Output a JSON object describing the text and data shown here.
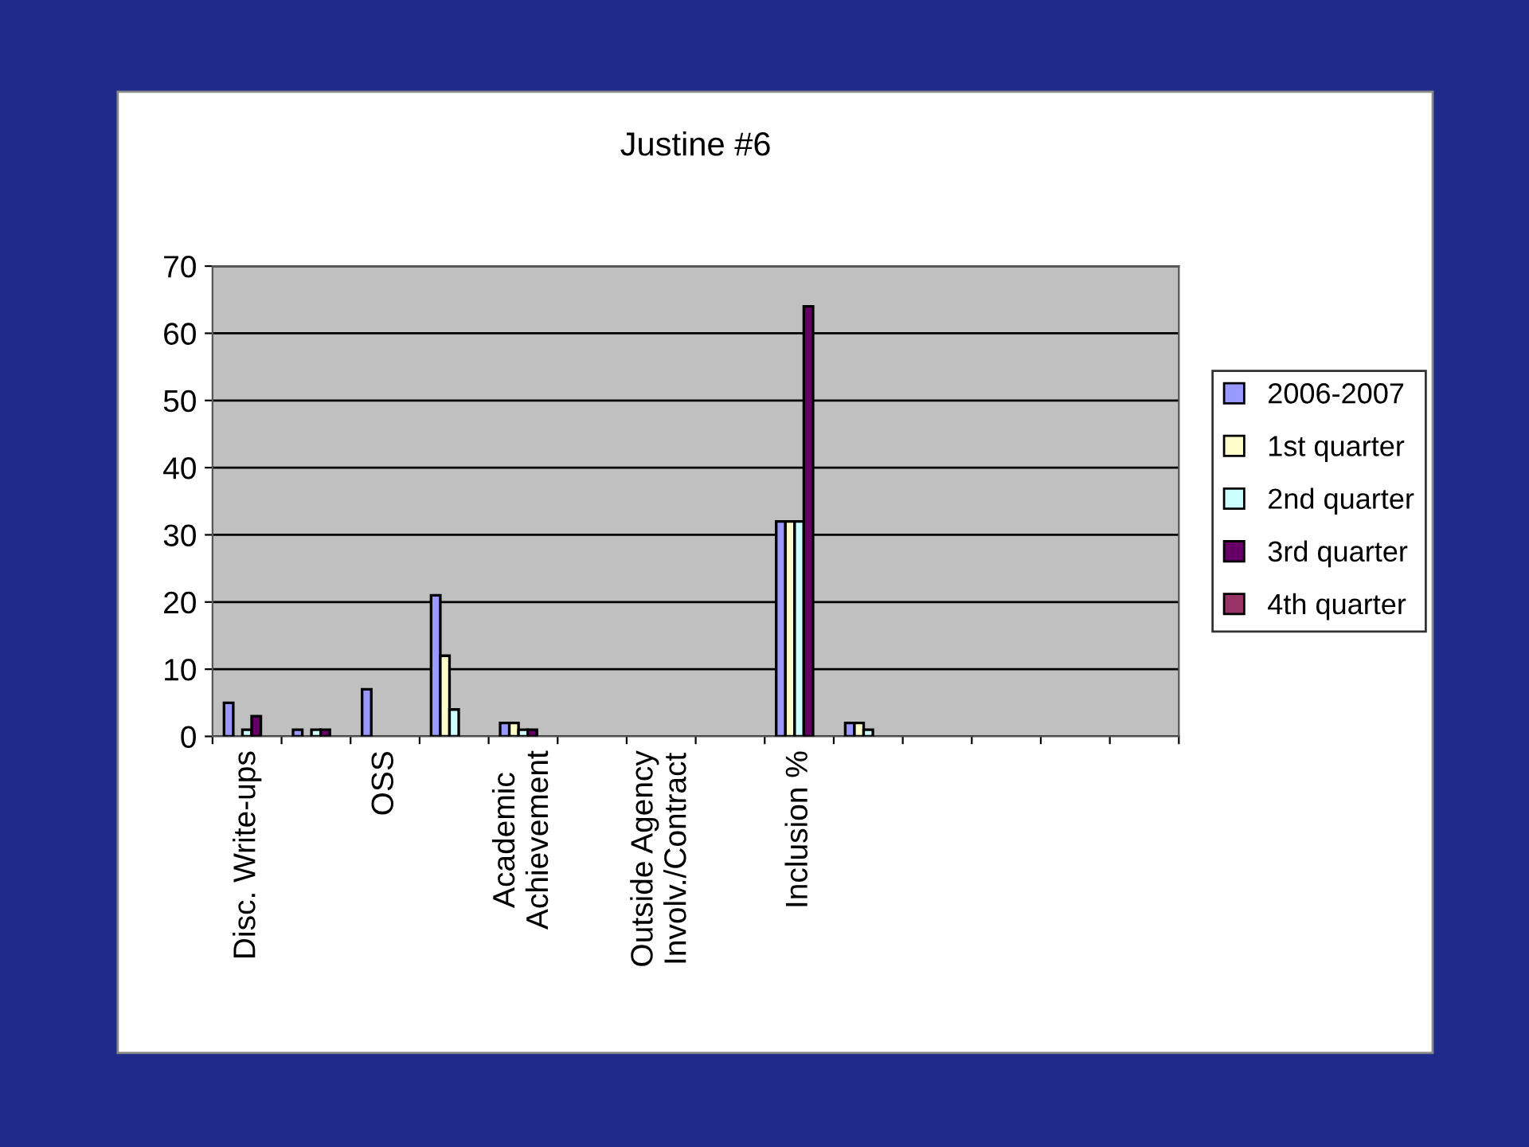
{
  "chart_data": {
    "type": "bar",
    "title": "Justine #6",
    "categories": [
      "Disc. Write-ups",
      null,
      "OSS",
      null,
      "Academic\nAchievement",
      null,
      "Outside Agency\nInvolv./Contract",
      null,
      "Inclusion %",
      null,
      null,
      null,
      null,
      null
    ],
    "series": [
      {
        "name": "2006-2007",
        "color": "#9999ff",
        "values": [
          5,
          1,
          7,
          21,
          2,
          null,
          null,
          null,
          32,
          2,
          null,
          null,
          null,
          null
        ]
      },
      {
        "name": "1st quarter",
        "color": "#ffffcc",
        "values": [
          null,
          null,
          null,
          12,
          2,
          null,
          null,
          null,
          32,
          2,
          null,
          null,
          null,
          null
        ]
      },
      {
        "name": "2nd quarter",
        "color": "#ccffff",
        "values": [
          1,
          1,
          null,
          4,
          1,
          null,
          null,
          null,
          32,
          1,
          null,
          null,
          null,
          null
        ]
      },
      {
        "name": "3rd quarter",
        "color": "#660066",
        "values": [
          3,
          1,
          null,
          null,
          1,
          null,
          null,
          null,
          64,
          null,
          null,
          null,
          null,
          null
        ]
      },
      {
        "name": "4th quarter",
        "color": "#993366",
        "values": [
          null,
          null,
          null,
          null,
          null,
          null,
          null,
          null,
          null,
          null,
          null,
          null,
          null,
          null
        ]
      }
    ],
    "ylim": [
      0,
      70
    ],
    "yticks": [
      0,
      10,
      20,
      30,
      40,
      50,
      60,
      70
    ],
    "grid": "y",
    "legend": "right"
  }
}
